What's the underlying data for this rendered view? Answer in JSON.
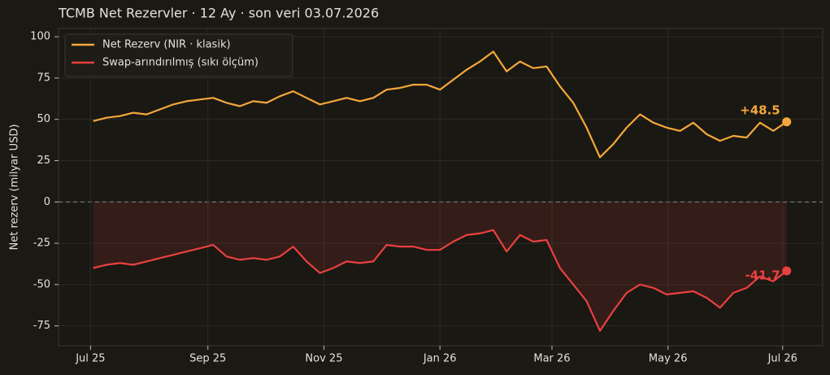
{
  "chart_data": {
    "type": "line",
    "title": "TCMB Net Rezervler · 12 Ay · son veri 03.07.2026",
    "y_label": "Net rezerv (milyar USD)",
    "xlim": [
      -2.6,
      54.7
    ],
    "xticks": [
      {
        "value": -0.2,
        "label": "Jul 25"
      },
      {
        "value": 8.6,
        "label": "Sep 25"
      },
      {
        "value": 17.3,
        "label": "Nov 25"
      },
      {
        "value": 26,
        "label": "Jan 26"
      },
      {
        "value": 34.4,
        "label": "Mar 26"
      },
      {
        "value": 43.1,
        "label": "May 26"
      },
      {
        "value": 51.7,
        "label": "Jul 26"
      }
    ],
    "ylim": [
      -87,
      105
    ],
    "yticks": [
      -75,
      -50,
      -25,
      0,
      25,
      50,
      75,
      100
    ],
    "grid": true,
    "legend": "upper left",
    "series": [
      {
        "name": "Net Rezerv (NIR · klasik)",
        "color": "#f5a83a",
        "values": [
          49,
          51,
          52,
          54,
          53,
          56,
          59,
          61,
          62,
          63,
          60,
          58,
          61,
          60,
          64,
          67,
          63,
          59,
          61,
          63,
          61,
          63,
          68,
          69,
          71,
          71,
          68,
          74,
          80,
          85,
          91,
          79,
          85,
          81,
          82,
          70,
          60,
          45,
          27,
          35,
          45,
          53,
          48,
          45,
          43,
          48,
          41,
          37,
          40,
          39,
          48,
          43,
          48.5
        ],
        "value_labels": [
          null,
          null,
          null,
          null,
          null,
          null,
          null,
          null,
          null,
          null,
          null,
          null,
          null,
          null,
          null,
          null,
          null,
          null,
          null,
          null,
          null,
          null,
          null,
          null,
          null,
          null,
          null,
          null,
          null,
          null,
          null,
          null,
          null,
          null,
          null,
          null,
          null,
          null,
          null,
          null,
          null,
          null,
          null,
          null,
          null,
          null,
          null,
          null,
          null,
          null,
          null,
          null,
          "+48.5"
        ]
      },
      {
        "name": "Swap-arındırılmış (sıkı ölçüm)",
        "color": "#e8413f",
        "values": [
          -40,
          -38,
          -37,
          -38,
          -36,
          -34,
          -32,
          -30,
          -28,
          -26,
          -33,
          -35,
          -34,
          -35,
          -33,
          -27,
          -36,
          -43,
          -40,
          -36,
          -37,
          -36,
          -26,
          -27,
          -27,
          -29,
          -29,
          -24,
          -20,
          -19,
          -17,
          -30,
          -20,
          -24,
          -23,
          -40,
          -50,
          -60,
          -78,
          -66,
          -55,
          -50,
          -52,
          -56,
          -55,
          -54,
          -58,
          -64,
          -55,
          -52,
          -45,
          -48,
          -41.7
        ],
        "value_labels": [
          null,
          null,
          null,
          null,
          null,
          null,
          null,
          null,
          null,
          null,
          null,
          null,
          null,
          null,
          null,
          null,
          null,
          null,
          null,
          null,
          null,
          null,
          null,
          null,
          null,
          null,
          null,
          null,
          null,
          null,
          null,
          null,
          null,
          null,
          null,
          null,
          null,
          null,
          null,
          null,
          null,
          null,
          null,
          null,
          null,
          null,
          null,
          null,
          null,
          null,
          null,
          null,
          "-41.7"
        ]
      }
    ]
  }
}
